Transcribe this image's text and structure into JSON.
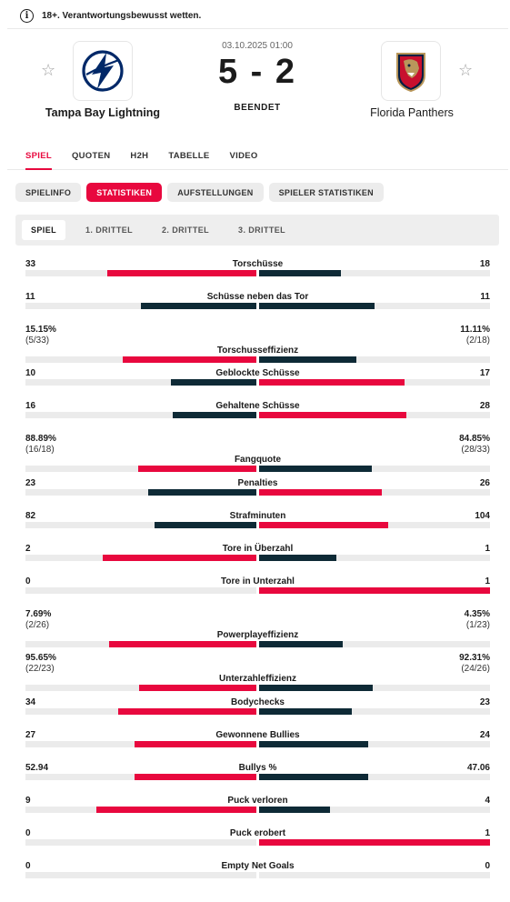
{
  "banner": {
    "icon": "info-icon",
    "text": "18+. Verantwortungsbewusst wetten."
  },
  "match": {
    "date": "03.10.2025 01:00",
    "score": "5 - 2",
    "status": "BEENDET",
    "home": {
      "name": "Tampa Bay Lightning",
      "logo": "lightning-logo",
      "favorite_icon": "star-icon"
    },
    "away": {
      "name": "Florida Panthers",
      "logo": "panthers-logo",
      "favorite_icon": "star-icon"
    }
  },
  "tabs": [
    "SPIEL",
    "QUOTEN",
    "H2H",
    "TABELLE",
    "VIDEO"
  ],
  "active_tab": 0,
  "subtabs": [
    "SPIELINFO",
    "STATISTIKEN",
    "AUFSTELLUNGEN",
    "SPIELER STATISTIKEN"
  ],
  "active_subtab": 1,
  "periods": [
    "SPIEL",
    "1. DRITTEL",
    "2. DRITTEL",
    "3. DRITTEL"
  ],
  "active_period": 0,
  "colors": {
    "accent": "#e8083e",
    "dark": "#0e2a36",
    "track": "#ebebeb"
  },
  "stats": [
    {
      "label": "Torschüsse",
      "home": "33",
      "away": "18",
      "hv": 33,
      "av": 18
    },
    {
      "label": "Schüsse neben das Tor",
      "home": "11",
      "away": "11",
      "hv": 11,
      "av": 11
    },
    {
      "label": "Torschusseffizienz",
      "home": "15.15%",
      "away": "11.11%",
      "home_sub": "(5/33)",
      "away_sub": "(2/18)",
      "hv": 15.15,
      "av": 11.11
    },
    {
      "label": "Geblockte Schüsse",
      "home": "10",
      "away": "17",
      "hv": 10,
      "av": 17
    },
    {
      "label": "Gehaltene Schüsse",
      "home": "16",
      "away": "28",
      "hv": 16,
      "av": 28
    },
    {
      "label": "Fangquote",
      "home": "88.89%",
      "away": "84.85%",
      "home_sub": "(16/18)",
      "away_sub": "(28/33)",
      "hv": 88.89,
      "av": 84.85
    },
    {
      "label": "Penalties",
      "home": "23",
      "away": "26",
      "hv": 23,
      "av": 26
    },
    {
      "label": "Strafminuten",
      "home": "82",
      "away": "104",
      "hv": 82,
      "av": 104
    },
    {
      "label": "Tore in Überzahl",
      "home": "2",
      "away": "1",
      "hv": 2,
      "av": 1
    },
    {
      "label": "Tore in Unterzahl",
      "home": "0",
      "away": "1",
      "hv": 0,
      "av": 1
    },
    {
      "label": "Powerplayeffizienz",
      "home": "7.69%",
      "away": "4.35%",
      "home_sub": "(2/26)",
      "away_sub": "(1/23)",
      "hv": 7.69,
      "av": 4.35
    },
    {
      "label": "Unterzahleffizienz",
      "home": "95.65%",
      "away": "92.31%",
      "home_sub": "(22/23)",
      "away_sub": "(24/26)",
      "hv": 95.65,
      "av": 92.31
    },
    {
      "label": "Bodychecks",
      "home": "34",
      "away": "23",
      "hv": 34,
      "av": 23
    },
    {
      "label": "Gewonnene Bullies",
      "home": "27",
      "away": "24",
      "hv": 27,
      "av": 24
    },
    {
      "label": "Bullys %",
      "home": "52.94",
      "away": "47.06",
      "hv": 52.94,
      "av": 47.06
    },
    {
      "label": "Puck verloren",
      "home": "9",
      "away": "4",
      "hv": 9,
      "av": 4
    },
    {
      "label": "Puck erobert",
      "home": "0",
      "away": "1",
      "hv": 0,
      "av": 1
    },
    {
      "label": "Empty Net Goals",
      "home": "0",
      "away": "0",
      "hv": 0,
      "av": 0
    }
  ]
}
